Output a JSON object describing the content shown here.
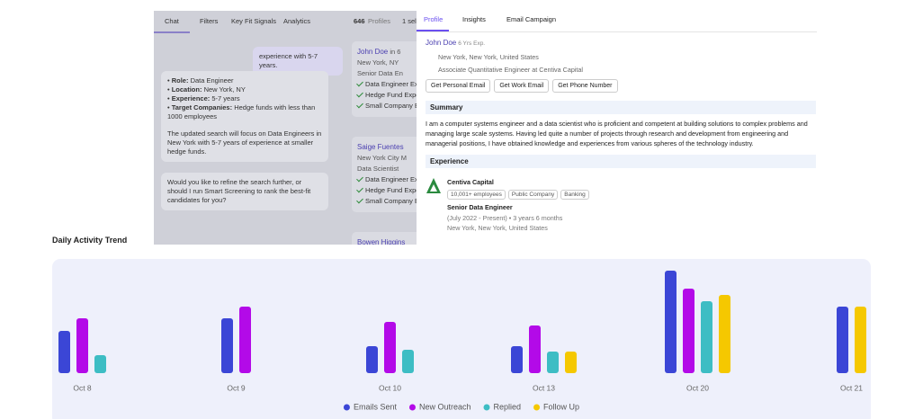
{
  "left_panel": {
    "tabs": [
      "Chat",
      "Filters",
      "Key Fit Signals",
      "Analytics"
    ],
    "profile_count": "646",
    "profile_count_label": "Profiles",
    "selected": "1 sel",
    "chat": {
      "user_message": "experience with 5-7 years.",
      "assistant_bullets": [
        {
          "label": "Role:",
          "value": "Data Engineer"
        },
        {
          "label": "Location:",
          "value": "New York, NY"
        },
        {
          "label": "Experience:",
          "value": "5-7 years"
        },
        {
          "label": "Target Companies:",
          "value": "Hedge funds with less than 1000 employees"
        }
      ],
      "assistant_paragraph": "The updated search will focus on Data Engineers in New York with 5-7 years of experience at smaller hedge funds.",
      "assistant_question": "Would you like to refine the search further, or should I run Smart Screening to rank the best-fit candidates for you?"
    },
    "profiles": [
      {
        "name": "John Doe",
        "exp": "in 6",
        "location": "New York, NY",
        "title": "Senior Data En",
        "signals": [
          "Data Engineer Ex",
          "Hedge Fund Exper",
          "Small Company E"
        ]
      },
      {
        "name": "Saige Fuentes",
        "location": "New York City M",
        "title": "Data Scientist",
        "signals": [
          "Data Engineer Ex",
          "Hedge Fund Exper",
          "Small Company E"
        ]
      },
      {
        "name": "Bowen Higgins"
      }
    ]
  },
  "profile_panel": {
    "tabs": [
      "Profile",
      "Insights",
      "Email Campaign"
    ],
    "name": "John Doe",
    "experience": "6 Yrs Exp.",
    "location": "New York, New York, United States",
    "position": "Associate Quantitative Engineer at Centiva Capital",
    "buttons": [
      "Get Personal Email",
      "Get Work Email",
      "Get Phone Number"
    ],
    "summary_heading": "Summary",
    "summary": "I am a computer systems engineer and a data scientist who is proficient and competent at building solutions to complex problems and managing large scale systems. Having led quite a number of projects through research and development from engineering and managerial positions, I have obtained knowledge and experiences from various spheres of the technology industry.",
    "experience_heading": "Experience",
    "company": "Centiva Capital",
    "company_tags": [
      "10,001+ employees",
      "Public Company",
      "Banking"
    ],
    "role": "Senior Data Engineer",
    "duration": "(July 2022 - Present) • 3 years 6 months",
    "role_location": "New York, New York, United States"
  },
  "chart_data": {
    "type": "bar",
    "title": "Daily Activity Trend",
    "categories": [
      "Oct 8",
      "Oct 9",
      "Oct 10",
      "Oct 13",
      "Oct 20",
      "Oct 21"
    ],
    "series": [
      {
        "name": "Emails Sent",
        "color": "#3b46d6",
        "values": [
          47,
          61,
          30,
          30,
          114,
          74
        ]
      },
      {
        "name": "New Outreach",
        "color": "#b30ae8",
        "values": [
          61,
          74,
          57,
          53,
          94,
          null
        ]
      },
      {
        "name": "Replied",
        "color": "#3dbdc4",
        "values": [
          20,
          null,
          26,
          24,
          80,
          null
        ]
      },
      {
        "name": "Follow Up",
        "color": "#f5c800",
        "values": [
          null,
          null,
          null,
          24,
          87,
          74
        ]
      }
    ],
    "ylim": [
      0,
      125
    ],
    "legend": "bottom"
  }
}
